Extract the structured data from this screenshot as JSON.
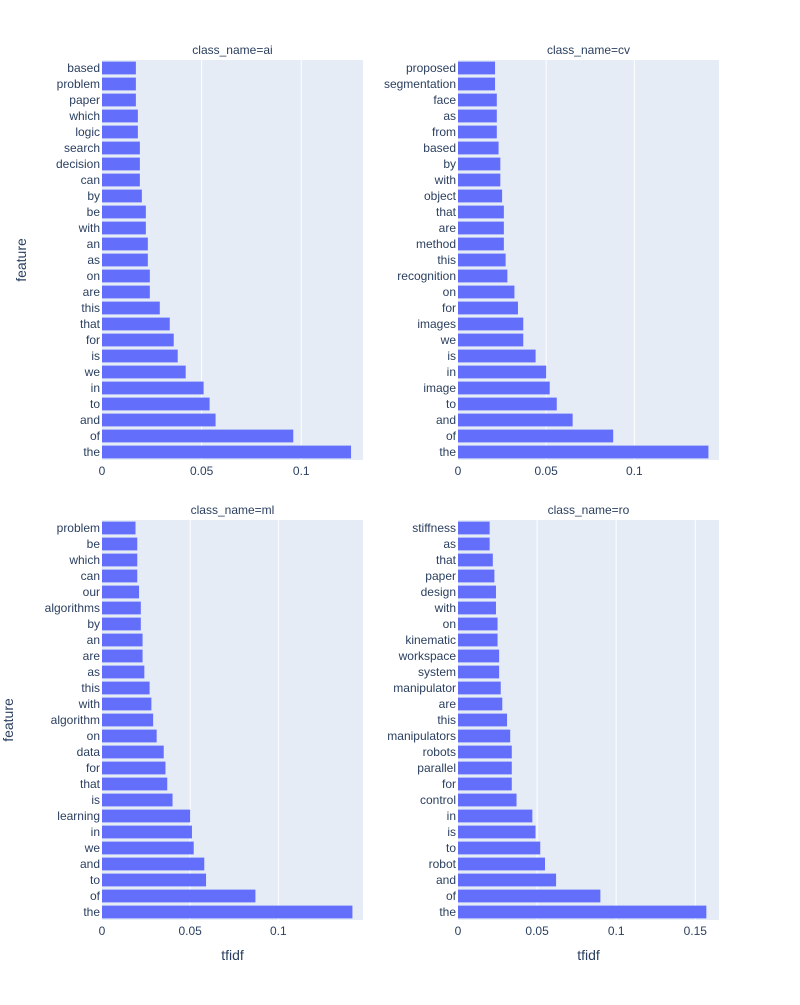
{
  "chart_data": {
    "type": "bar",
    "orientation": "horizontal",
    "layout": "facet-grid-2x2",
    "bar_color": "#636efa",
    "plot_background": "#e5ecf6",
    "grid": true,
    "xlabel": "tfidf",
    "ylabel": "feature",
    "panels": [
      {
        "title": "class_name=ai",
        "xlim": [
          0,
          0.131
        ],
        "xticks": [
          0,
          0.05,
          0.1
        ],
        "xtick_labels": [
          "0",
          "0.05",
          "0.1"
        ],
        "categories": [
          "based",
          "problem",
          "paper",
          "which",
          "logic",
          "search",
          "decision",
          "can",
          "by",
          "be",
          "with",
          "an",
          "as",
          "on",
          "are",
          "this",
          "that",
          "for",
          "is",
          "we",
          "in",
          "to",
          "and",
          "of",
          "the"
        ],
        "values": [
          0.017,
          0.017,
          0.017,
          0.018,
          0.018,
          0.019,
          0.019,
          0.019,
          0.02,
          0.022,
          0.022,
          0.023,
          0.023,
          0.024,
          0.024,
          0.029,
          0.034,
          0.036,
          0.038,
          0.042,
          0.051,
          0.054,
          0.057,
          0.096,
          0.125
        ]
      },
      {
        "title": "class_name=cv",
        "xlim": [
          0,
          0.148
        ],
        "xticks": [
          0,
          0.05,
          0.1
        ],
        "xtick_labels": [
          "0",
          "0.05",
          "0.1"
        ],
        "categories": [
          "proposed",
          "segmentation",
          "face",
          "as",
          "from",
          "based",
          "by",
          "with",
          "object",
          "that",
          "are",
          "method",
          "this",
          "recognition",
          "on",
          "for",
          "images",
          "we",
          "is",
          "in",
          "image",
          "to",
          "and",
          "of",
          "the"
        ],
        "values": [
          0.021,
          0.021,
          0.022,
          0.022,
          0.022,
          0.023,
          0.024,
          0.024,
          0.025,
          0.026,
          0.026,
          0.026,
          0.027,
          0.028,
          0.032,
          0.034,
          0.037,
          0.037,
          0.044,
          0.05,
          0.052,
          0.056,
          0.065,
          0.088,
          0.142
        ]
      },
      {
        "title": "class_name=ml",
        "xlim": [
          0,
          0.148
        ],
        "xticks": [
          0,
          0.05,
          0.1
        ],
        "xtick_labels": [
          "0",
          "0.05",
          "0.1"
        ],
        "categories": [
          "problem",
          "be",
          "which",
          "can",
          "our",
          "algorithms",
          "by",
          "an",
          "are",
          "as",
          "this",
          "with",
          "algorithm",
          "on",
          "data",
          "for",
          "that",
          "is",
          "learning",
          "in",
          "we",
          "and",
          "to",
          "of",
          "the"
        ],
        "values": [
          0.019,
          0.02,
          0.02,
          0.02,
          0.021,
          0.022,
          0.022,
          0.023,
          0.023,
          0.024,
          0.027,
          0.028,
          0.029,
          0.031,
          0.035,
          0.036,
          0.037,
          0.04,
          0.05,
          0.051,
          0.052,
          0.058,
          0.059,
          0.087,
          0.142
        ]
      },
      {
        "title": "class_name=ro",
        "xlim": [
          0,
          0.165
        ],
        "xticks": [
          0,
          0.05,
          0.1,
          0.15
        ],
        "xtick_labels": [
          "0",
          "0.05",
          "0.1",
          "0.15"
        ],
        "categories": [
          "stiffness",
          "as",
          "that",
          "paper",
          "design",
          "with",
          "on",
          "kinematic",
          "workspace",
          "system",
          "manipulator",
          "are",
          "this",
          "manipulators",
          "robots",
          "parallel",
          "for",
          "control",
          "in",
          "is",
          "to",
          "robot",
          "and",
          "of",
          "the"
        ],
        "values": [
          0.02,
          0.02,
          0.022,
          0.023,
          0.024,
          0.024,
          0.025,
          0.025,
          0.026,
          0.026,
          0.027,
          0.028,
          0.031,
          0.033,
          0.034,
          0.034,
          0.034,
          0.037,
          0.047,
          0.049,
          0.052,
          0.055,
          0.062,
          0.09,
          0.157
        ]
      }
    ]
  }
}
